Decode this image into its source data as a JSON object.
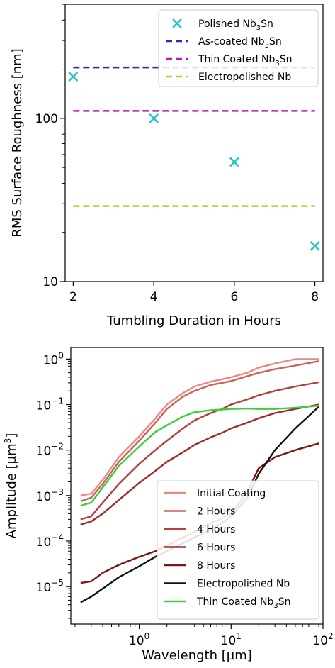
{
  "chart_data": [
    {
      "type": "scatter",
      "xlabel": "Tumbling Duration in Hours",
      "ylabel": "RMS Surface Roughness [nm]",
      "yscale": "log",
      "xlim": [
        1.8,
        8.2
      ],
      "ylim": [
        10,
        500
      ],
      "xticks": [
        2,
        4,
        6,
        8
      ],
      "yticks": [
        {
          "value": 10,
          "label": "10"
        },
        {
          "value": 100,
          "label": "100"
        }
      ],
      "legend_position": "top-right",
      "series": [
        {
          "name": "Polished Nb",
          "sub": "3",
          "tail": "Sn",
          "kind": "scatter",
          "marker": "x",
          "color": "#2cc4c4",
          "x": [
            2,
            4,
            6,
            8
          ],
          "y": [
            180,
            100,
            54,
            16.5
          ]
        },
        {
          "name": "As-coated Nb",
          "sub": "3",
          "tail": "Sn",
          "kind": "hline",
          "color": "#1f2fbf",
          "x": [
            2,
            8
          ],
          "y": [
            205,
            205
          ]
        },
        {
          "name": "Thin Coated Nb",
          "sub": "3",
          "tail": "Sn",
          "kind": "hline",
          "color": "#b321b3",
          "x": [
            2,
            8
          ],
          "y": [
            111,
            111
          ]
        },
        {
          "name": "Electropolished Nb",
          "sub": "",
          "tail": "",
          "kind": "hline",
          "color": "#c4c42b",
          "x": [
            2,
            8
          ],
          "y": [
            29,
            29
          ]
        }
      ]
    },
    {
      "type": "line",
      "xlabel": "Wavelength [µm]",
      "ylabel_base": "Amplitude [µm",
      "ylabel_sup": "3",
      "ylabel_tail": "]",
      "xscale": "log",
      "yscale": "log",
      "xlim": [
        0.18,
        100
      ],
      "ylim": [
        1.5e-06,
        1.8
      ],
      "xticks": [
        {
          "value": 1,
          "base": "10",
          "exp": "0"
        },
        {
          "value": 10,
          "base": "10",
          "exp": "1"
        },
        {
          "value": 100,
          "base": "10",
          "exp": "2"
        }
      ],
      "yticks": [
        {
          "value": 1,
          "base": "10",
          "exp": "0"
        },
        {
          "value": 0.1,
          "base": "10",
          "exp": "−1"
        },
        {
          "value": 0.01,
          "base": "10",
          "exp": "−2"
        },
        {
          "value": 0.001,
          "base": "10",
          "exp": "−3"
        },
        {
          "value": 0.0001,
          "base": "10",
          "exp": "−4"
        },
        {
          "value": 1e-05,
          "base": "10",
          "exp": "−5"
        }
      ],
      "legend_position": "bottom-right",
      "series": [
        {
          "name": "Initial Coating",
          "sub": "",
          "tail": "",
          "color": "#e88a80",
          "x": [
            0.23,
            0.3,
            0.4,
            0.6,
            1,
            1.5,
            2,
            3,
            4,
            6,
            8,
            10,
            15,
            20,
            30,
            50,
            90
          ],
          "y": [
            0.001,
            0.0011,
            0.0022,
            0.007,
            0.02,
            0.05,
            0.1,
            0.18,
            0.25,
            0.32,
            0.36,
            0.4,
            0.5,
            0.65,
            0.8,
            1.0,
            1.0
          ]
        },
        {
          "name": "2 Hours",
          "sub": "",
          "tail": "",
          "color": "#cf5f58",
          "x": [
            0.23,
            0.3,
            0.4,
            0.6,
            1,
            1.5,
            2,
            3,
            4,
            6,
            8,
            10,
            15,
            20,
            30,
            50,
            90
          ],
          "y": [
            0.00075,
            0.0009,
            0.0018,
            0.0055,
            0.016,
            0.04,
            0.08,
            0.15,
            0.2,
            0.27,
            0.3,
            0.33,
            0.42,
            0.5,
            0.6,
            0.72,
            0.9
          ]
        },
        {
          "name": "4 Hours",
          "sub": "",
          "tail": "",
          "color": "#b3403c",
          "x": [
            0.23,
            0.3,
            0.4,
            0.6,
            1,
            1.5,
            2,
            3,
            4,
            6,
            8,
            10,
            15,
            20,
            30,
            50,
            90
          ],
          "y": [
            0.0003,
            0.00035,
            0.0007,
            0.0018,
            0.005,
            0.01,
            0.016,
            0.03,
            0.045,
            0.065,
            0.08,
            0.1,
            0.13,
            0.16,
            0.2,
            0.25,
            0.31
          ]
        },
        {
          "name": "6 Hours",
          "sub": "",
          "tail": "",
          "color": "#a12a2a",
          "x": [
            0.23,
            0.3,
            0.4,
            0.6,
            1,
            1.5,
            2,
            3,
            4,
            6,
            8,
            10,
            15,
            20,
            30,
            50,
            90
          ],
          "y": [
            0.00023,
            0.00027,
            0.0004,
            0.0008,
            0.0019,
            0.0035,
            0.0055,
            0.009,
            0.013,
            0.019,
            0.024,
            0.03,
            0.04,
            0.05,
            0.065,
            0.08,
            0.1
          ]
        },
        {
          "name": "8 Hours",
          "sub": "",
          "tail": "",
          "color": "#7d1313",
          "x": [
            0.23,
            0.3,
            0.4,
            0.6,
            1,
            1.5,
            2,
            3,
            4,
            6,
            8,
            10,
            15,
            20,
            30,
            50,
            90
          ],
          "y": [
            1.2e-05,
            1.3e-05,
            2e-05,
            3e-05,
            4.5e-05,
            6e-05,
            8e-05,
            0.00012,
            0.00016,
            0.00025,
            0.00032,
            0.0004,
            0.0012,
            0.004,
            0.007,
            0.01,
            0.014
          ]
        },
        {
          "name": "Electropolished Nb",
          "sub": "",
          "tail": "",
          "color": "#111111",
          "x": [
            0.23,
            0.3,
            0.4,
            0.6,
            1,
            1.5,
            2,
            3,
            4,
            6,
            8,
            10,
            15,
            20,
            30,
            50,
            90
          ],
          "y": [
            4.5e-06,
            6e-06,
            9e-06,
            1.6e-05,
            2.8e-05,
            4.5e-05,
            6e-05,
            9e-05,
            0.00012,
            0.00018,
            0.00025,
            0.00035,
            0.0009,
            0.003,
            0.01,
            0.03,
            0.09
          ]
        },
        {
          "name": "Thin Coated Nb",
          "sub": "3",
          "tail": "Sn",
          "color": "#3ccf3c",
          "x": [
            0.23,
            0.3,
            0.4,
            0.6,
            1,
            1.5,
            2,
            3,
            4,
            6,
            8,
            10,
            15,
            20,
            30,
            50,
            90
          ],
          "y": [
            0.0006,
            0.0007,
            0.0015,
            0.0045,
            0.012,
            0.025,
            0.035,
            0.055,
            0.068,
            0.075,
            0.078,
            0.08,
            0.082,
            0.08,
            0.08,
            0.085,
            0.095
          ]
        }
      ]
    }
  ]
}
